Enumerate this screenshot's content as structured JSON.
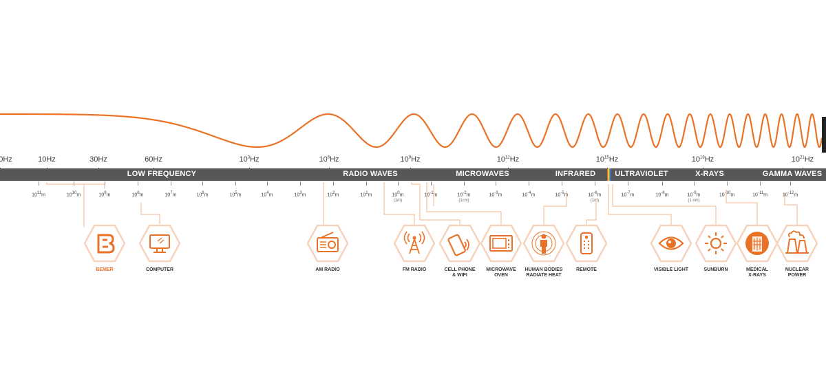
{
  "colors": {
    "accent": "#ea7226",
    "band": "#575757",
    "hex_border": "#f6d3bd",
    "line": "#f4b48a"
  },
  "frequency_labels": [
    {
      "base": "0Hz",
      "sup": ""
    },
    {
      "base": "10Hz",
      "sup": ""
    },
    {
      "base": "30Hz",
      "sup": ""
    },
    {
      "base": "60Hz",
      "sup": ""
    },
    {
      "base": "10",
      "sup": "3",
      "unit": "Hz"
    },
    {
      "base": "10",
      "sup": "6",
      "unit": "Hz"
    },
    {
      "base": "10",
      "sup": "9",
      "unit": "Hz"
    },
    {
      "base": "10",
      "sup": "12",
      "unit": "Hz"
    },
    {
      "base": "10",
      "sup": "15",
      "unit": "Hz"
    },
    {
      "base": "10",
      "sup": "18",
      "unit": "Hz"
    },
    {
      "base": "10",
      "sup": "21",
      "unit": "Hz"
    }
  ],
  "bands": [
    "LOW FREQUENCY",
    "RADIO WAVES",
    "MICROWAVES",
    "INFRARED",
    "ULTRAVIOLET",
    "X-RAYS",
    "GAMMA WAVES"
  ],
  "wavelengths": [
    {
      "sup": "11",
      "sub": ""
    },
    {
      "sup": "10",
      "sub": ""
    },
    {
      "sup": "9",
      "sub": ""
    },
    {
      "sup": "8",
      "sub": ""
    },
    {
      "sup": "7",
      "sub": ""
    },
    {
      "sup": "6",
      "sub": ""
    },
    {
      "sup": "5",
      "sub": ""
    },
    {
      "sup": "4",
      "sub": ""
    },
    {
      "sup": "3",
      "sub": ""
    },
    {
      "sup": "2",
      "sub": ""
    },
    {
      "sup": "1",
      "sub": ""
    },
    {
      "sup": "0",
      "sub": "(1m)"
    },
    {
      "sup": "-1",
      "sub": ""
    },
    {
      "sup": "-2",
      "sub": "(1cm)"
    },
    {
      "sup": "-3",
      "sub": ""
    },
    {
      "sup": "-4",
      "sub": ""
    },
    {
      "sup": "-5",
      "sub": ""
    },
    {
      "sup": "-6",
      "sub": "(1m)"
    },
    {
      "sup": "-7",
      "sub": ""
    },
    {
      "sup": "-8",
      "sub": ""
    },
    {
      "sup": "-9",
      "sub": "(1 nm)"
    },
    {
      "sup": "-10",
      "sub": ""
    },
    {
      "sup": "-11",
      "sub": ""
    },
    {
      "sup": "-12",
      "sub": ""
    }
  ],
  "icons": [
    {
      "id": "bemer",
      "label": [
        "BEMER"
      ],
      "icon": "bemer-logo-icon",
      "accent": true
    },
    {
      "id": "computer",
      "label": [
        "COMPUTER"
      ],
      "icon": "computer-monitor-icon",
      "accent": false
    },
    {
      "id": "am-radio",
      "label": [
        "AM RADIO"
      ],
      "icon": "radio-icon",
      "accent": false
    },
    {
      "id": "fm-radio",
      "label": [
        "FM RADIO"
      ],
      "icon": "radio-tower-icon",
      "accent": false
    },
    {
      "id": "cell-phone",
      "label": [
        "CELL PHONE",
        "& WIFI"
      ],
      "icon": "cell-phone-wifi-icon",
      "accent": false
    },
    {
      "id": "microwave",
      "label": [
        "MICROWAVE",
        "OVEN"
      ],
      "icon": "microwave-oven-icon",
      "accent": false
    },
    {
      "id": "human",
      "label": [
        "HUMAN BODIES",
        "RADIATE HEAT"
      ],
      "icon": "human-body-icon",
      "accent": false
    },
    {
      "id": "remote",
      "label": [
        "REMOTE"
      ],
      "icon": "remote-control-icon",
      "accent": false
    },
    {
      "id": "visible",
      "label": [
        "VISIBLE LIGHT"
      ],
      "icon": "eye-icon",
      "accent": false
    },
    {
      "id": "sunburn",
      "label": [
        "SUNBURN"
      ],
      "icon": "sun-icon",
      "accent": false
    },
    {
      "id": "xrays",
      "label": [
        "MEDICAL",
        "X-RAYS"
      ],
      "icon": "xray-body-icon",
      "accent": false
    },
    {
      "id": "nuclear",
      "label": [
        "NUCLEAR",
        "POWER"
      ],
      "icon": "nuclear-plant-icon",
      "accent": false
    }
  ]
}
